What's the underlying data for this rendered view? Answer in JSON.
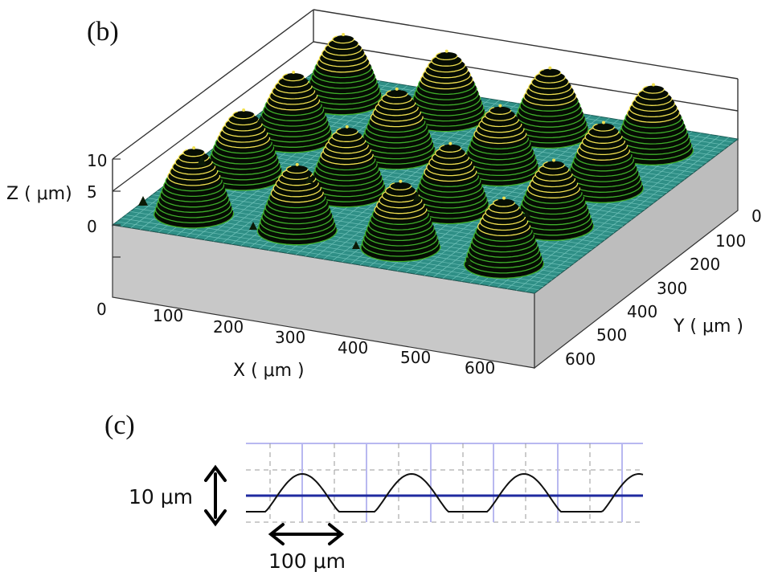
{
  "panels": {
    "b": {
      "label": "(b)"
    },
    "c": {
      "label": "(c)"
    }
  },
  "chart_data": [
    {
      "type": "surface",
      "panel": "(b)",
      "xlabel": "X ( μm )",
      "ylabel": "Y ( μm )",
      "zlabel": "Z ( μm)",
      "x_ticks": [
        "0",
        "100",
        "200",
        "300",
        "400",
        "500",
        "600"
      ],
      "y_ticks": [
        "0",
        "100",
        "200",
        "300",
        "400",
        "500",
        "600"
      ],
      "z_ticks": [
        "0",
        "5",
        "10"
      ],
      "xlim": [
        0,
        650
      ],
      "ylim": [
        0,
        650
      ],
      "zlim": [
        0,
        10
      ],
      "grid_rows": 4,
      "grid_cols": 4,
      "bump_height": 10,
      "bump_pitch": 150,
      "colors": {
        "base": "#2f8f86",
        "bump_dark": "#060d03",
        "bump_green": "#3fae2a",
        "bump_yellow": "#f0e050",
        "side": "#c8c8c8"
      }
    },
    {
      "type": "line",
      "panel": "(c)",
      "description_marks": [
        "10 μm",
        "100 μm"
      ],
      "vertical_scale_label": "10 μm",
      "horizontal_scale_label": "100 μm",
      "peak_count": 4,
      "peak_height_um": 10,
      "pitch_um": 100,
      "colors": {
        "profile": "#111111",
        "reference": "#1f2aa0",
        "grid": "#b8b8f0"
      }
    }
  ]
}
